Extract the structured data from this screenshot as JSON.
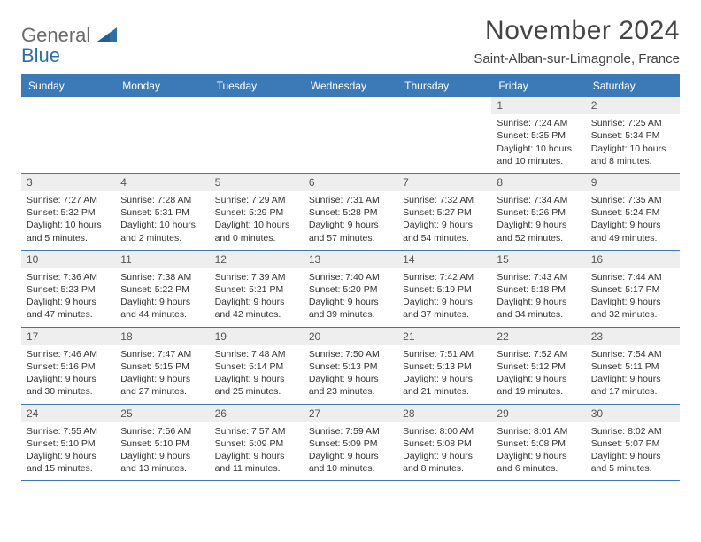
{
  "brand": {
    "line1": "General",
    "line2": "Blue"
  },
  "title": "November 2024",
  "location": "Saint-Alban-sur-Limagnole, France",
  "colors": {
    "accent": "#3b79b7",
    "band": "#eeeeee",
    "text": "#333333",
    "title": "#444444"
  },
  "dayNames": [
    "Sunday",
    "Monday",
    "Tuesday",
    "Wednesday",
    "Thursday",
    "Friday",
    "Saturday"
  ],
  "weeks": [
    [
      null,
      null,
      null,
      null,
      null,
      {
        "n": "1",
        "sr": "Sunrise: 7:24 AM",
        "ss": "Sunset: 5:35 PM",
        "dl1": "Daylight: 10 hours",
        "dl2": "and 10 minutes."
      },
      {
        "n": "2",
        "sr": "Sunrise: 7:25 AM",
        "ss": "Sunset: 5:34 PM",
        "dl1": "Daylight: 10 hours",
        "dl2": "and 8 minutes."
      }
    ],
    [
      {
        "n": "3",
        "sr": "Sunrise: 7:27 AM",
        "ss": "Sunset: 5:32 PM",
        "dl1": "Daylight: 10 hours",
        "dl2": "and 5 minutes."
      },
      {
        "n": "4",
        "sr": "Sunrise: 7:28 AM",
        "ss": "Sunset: 5:31 PM",
        "dl1": "Daylight: 10 hours",
        "dl2": "and 2 minutes."
      },
      {
        "n": "5",
        "sr": "Sunrise: 7:29 AM",
        "ss": "Sunset: 5:29 PM",
        "dl1": "Daylight: 10 hours",
        "dl2": "and 0 minutes."
      },
      {
        "n": "6",
        "sr": "Sunrise: 7:31 AM",
        "ss": "Sunset: 5:28 PM",
        "dl1": "Daylight: 9 hours",
        "dl2": "and 57 minutes."
      },
      {
        "n": "7",
        "sr": "Sunrise: 7:32 AM",
        "ss": "Sunset: 5:27 PM",
        "dl1": "Daylight: 9 hours",
        "dl2": "and 54 minutes."
      },
      {
        "n": "8",
        "sr": "Sunrise: 7:34 AM",
        "ss": "Sunset: 5:26 PM",
        "dl1": "Daylight: 9 hours",
        "dl2": "and 52 minutes."
      },
      {
        "n": "9",
        "sr": "Sunrise: 7:35 AM",
        "ss": "Sunset: 5:24 PM",
        "dl1": "Daylight: 9 hours",
        "dl2": "and 49 minutes."
      }
    ],
    [
      {
        "n": "10",
        "sr": "Sunrise: 7:36 AM",
        "ss": "Sunset: 5:23 PM",
        "dl1": "Daylight: 9 hours",
        "dl2": "and 47 minutes."
      },
      {
        "n": "11",
        "sr": "Sunrise: 7:38 AM",
        "ss": "Sunset: 5:22 PM",
        "dl1": "Daylight: 9 hours",
        "dl2": "and 44 minutes."
      },
      {
        "n": "12",
        "sr": "Sunrise: 7:39 AM",
        "ss": "Sunset: 5:21 PM",
        "dl1": "Daylight: 9 hours",
        "dl2": "and 42 minutes."
      },
      {
        "n": "13",
        "sr": "Sunrise: 7:40 AM",
        "ss": "Sunset: 5:20 PM",
        "dl1": "Daylight: 9 hours",
        "dl2": "and 39 minutes."
      },
      {
        "n": "14",
        "sr": "Sunrise: 7:42 AM",
        "ss": "Sunset: 5:19 PM",
        "dl1": "Daylight: 9 hours",
        "dl2": "and 37 minutes."
      },
      {
        "n": "15",
        "sr": "Sunrise: 7:43 AM",
        "ss": "Sunset: 5:18 PM",
        "dl1": "Daylight: 9 hours",
        "dl2": "and 34 minutes."
      },
      {
        "n": "16",
        "sr": "Sunrise: 7:44 AM",
        "ss": "Sunset: 5:17 PM",
        "dl1": "Daylight: 9 hours",
        "dl2": "and 32 minutes."
      }
    ],
    [
      {
        "n": "17",
        "sr": "Sunrise: 7:46 AM",
        "ss": "Sunset: 5:16 PM",
        "dl1": "Daylight: 9 hours",
        "dl2": "and 30 minutes."
      },
      {
        "n": "18",
        "sr": "Sunrise: 7:47 AM",
        "ss": "Sunset: 5:15 PM",
        "dl1": "Daylight: 9 hours",
        "dl2": "and 27 minutes."
      },
      {
        "n": "19",
        "sr": "Sunrise: 7:48 AM",
        "ss": "Sunset: 5:14 PM",
        "dl1": "Daylight: 9 hours",
        "dl2": "and 25 minutes."
      },
      {
        "n": "20",
        "sr": "Sunrise: 7:50 AM",
        "ss": "Sunset: 5:13 PM",
        "dl1": "Daylight: 9 hours",
        "dl2": "and 23 minutes."
      },
      {
        "n": "21",
        "sr": "Sunrise: 7:51 AM",
        "ss": "Sunset: 5:13 PM",
        "dl1": "Daylight: 9 hours",
        "dl2": "and 21 minutes."
      },
      {
        "n": "22",
        "sr": "Sunrise: 7:52 AM",
        "ss": "Sunset: 5:12 PM",
        "dl1": "Daylight: 9 hours",
        "dl2": "and 19 minutes."
      },
      {
        "n": "23",
        "sr": "Sunrise: 7:54 AM",
        "ss": "Sunset: 5:11 PM",
        "dl1": "Daylight: 9 hours",
        "dl2": "and 17 minutes."
      }
    ],
    [
      {
        "n": "24",
        "sr": "Sunrise: 7:55 AM",
        "ss": "Sunset: 5:10 PM",
        "dl1": "Daylight: 9 hours",
        "dl2": "and 15 minutes."
      },
      {
        "n": "25",
        "sr": "Sunrise: 7:56 AM",
        "ss": "Sunset: 5:10 PM",
        "dl1": "Daylight: 9 hours",
        "dl2": "and 13 minutes."
      },
      {
        "n": "26",
        "sr": "Sunrise: 7:57 AM",
        "ss": "Sunset: 5:09 PM",
        "dl1": "Daylight: 9 hours",
        "dl2": "and 11 minutes."
      },
      {
        "n": "27",
        "sr": "Sunrise: 7:59 AM",
        "ss": "Sunset: 5:09 PM",
        "dl1": "Daylight: 9 hours",
        "dl2": "and 10 minutes."
      },
      {
        "n": "28",
        "sr": "Sunrise: 8:00 AM",
        "ss": "Sunset: 5:08 PM",
        "dl1": "Daylight: 9 hours",
        "dl2": "and 8 minutes."
      },
      {
        "n": "29",
        "sr": "Sunrise: 8:01 AM",
        "ss": "Sunset: 5:08 PM",
        "dl1": "Daylight: 9 hours",
        "dl2": "and 6 minutes."
      },
      {
        "n": "30",
        "sr": "Sunrise: 8:02 AM",
        "ss": "Sunset: 5:07 PM",
        "dl1": "Daylight: 9 hours",
        "dl2": "and 5 minutes."
      }
    ]
  ]
}
